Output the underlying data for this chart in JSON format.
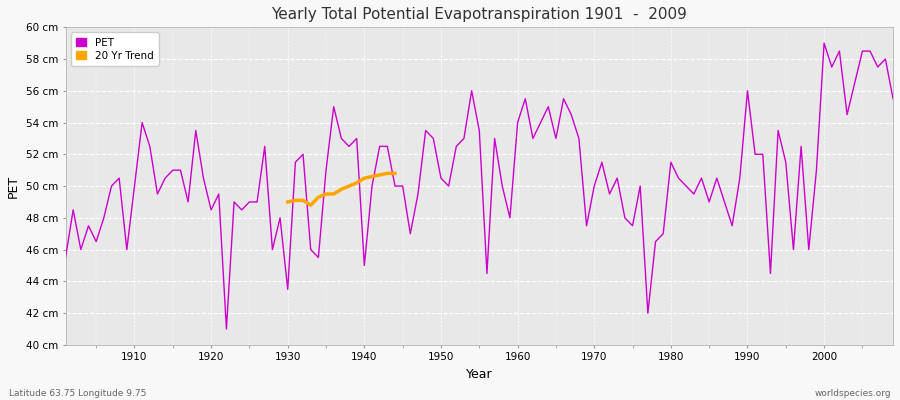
{
  "title": "Yearly Total Potential Evapotranspiration 1901  -  2009",
  "xlabel": "Year",
  "ylabel": "PET",
  "lat_lon_label": "Latitude 63.75 Longitude 9.75",
  "watermark": "worldspecies.org",
  "pet_color": "#cc00cc",
  "trend_color": "#FFA500",
  "fig_bg_color": "#f8f8f8",
  "plot_bg_color": "#e8e8e8",
  "ylim": [
    40,
    60
  ],
  "ytick_labels": [
    "40 cm",
    "42 cm",
    "44 cm",
    "46 cm",
    "48 cm",
    "50 cm",
    "52 cm",
    "54 cm",
    "56 cm",
    "58 cm",
    "60 cm"
  ],
  "ytick_values": [
    40,
    42,
    44,
    46,
    48,
    50,
    52,
    54,
    56,
    58,
    60
  ],
  "xlim_start": 1901,
  "xlim_end": 2009,
  "xticks": [
    1910,
    1920,
    1930,
    1940,
    1950,
    1960,
    1970,
    1980,
    1990,
    2000
  ],
  "years": [
    1901,
    1902,
    1903,
    1904,
    1905,
    1906,
    1907,
    1908,
    1909,
    1910,
    1911,
    1912,
    1913,
    1914,
    1915,
    1916,
    1917,
    1918,
    1919,
    1920,
    1921,
    1922,
    1923,
    1924,
    1925,
    1926,
    1927,
    1928,
    1929,
    1930,
    1931,
    1932,
    1933,
    1934,
    1935,
    1936,
    1937,
    1938,
    1939,
    1940,
    1941,
    1942,
    1943,
    1944,
    1945,
    1946,
    1947,
    1948,
    1949,
    1950,
    1951,
    1952,
    1953,
    1954,
    1955,
    1956,
    1957,
    1958,
    1959,
    1960,
    1961,
    1962,
    1963,
    1964,
    1965,
    1966,
    1967,
    1968,
    1969,
    1970,
    1971,
    1972,
    1973,
    1974,
    1975,
    1976,
    1977,
    1978,
    1979,
    1980,
    1981,
    1982,
    1983,
    1984,
    1985,
    1986,
    1987,
    1988,
    1989,
    1990,
    1991,
    1992,
    1993,
    1994,
    1995,
    1996,
    1997,
    1998,
    1999,
    2000,
    2001,
    2002,
    2003,
    2004,
    2005,
    2006,
    2007,
    2008,
    2009
  ],
  "pet_values": [
    45.5,
    48.5,
    46.0,
    47.5,
    46.5,
    48.0,
    50.0,
    50.5,
    46.0,
    50.0,
    54.0,
    52.5,
    49.5,
    50.5,
    51.0,
    51.0,
    49.0,
    53.5,
    50.5,
    48.5,
    49.5,
    41.0,
    49.0,
    48.5,
    49.0,
    49.0,
    52.5,
    46.0,
    48.0,
    43.5,
    51.5,
    52.0,
    46.0,
    45.5,
    51.0,
    55.0,
    53.0,
    52.5,
    53.0,
    45.0,
    50.0,
    52.5,
    52.5,
    50.0,
    50.0,
    47.0,
    49.5,
    53.5,
    53.0,
    50.5,
    50.0,
    52.5,
    53.0,
    56.0,
    53.5,
    44.5,
    53.0,
    50.0,
    48.0,
    54.0,
    55.5,
    53.0,
    54.0,
    55.0,
    53.0,
    55.5,
    54.5,
    53.0,
    47.5,
    50.0,
    51.5,
    49.5,
    50.5,
    48.0,
    47.5,
    50.0,
    42.0,
    46.5,
    47.0,
    51.5,
    50.5,
    50.0,
    49.5,
    50.5,
    49.0,
    50.5,
    49.0,
    47.5,
    50.5,
    56.0,
    52.0,
    52.0,
    44.5,
    53.5,
    51.5,
    46.0,
    52.5,
    46.0,
    51.0,
    59.0,
    57.5,
    58.5,
    54.5,
    56.5,
    58.5,
    58.5,
    57.5,
    58.0,
    55.5
  ],
  "trend_years": [
    1930,
    1931,
    1932,
    1933,
    1934,
    1935,
    1936,
    1937,
    1938,
    1939,
    1940,
    1941,
    1942,
    1943,
    1944
  ],
  "trend_values": [
    49.0,
    49.1,
    49.1,
    48.8,
    49.3,
    49.5,
    49.5,
    49.8,
    50.0,
    50.2,
    50.5,
    50.6,
    50.7,
    50.8,
    50.8
  ]
}
